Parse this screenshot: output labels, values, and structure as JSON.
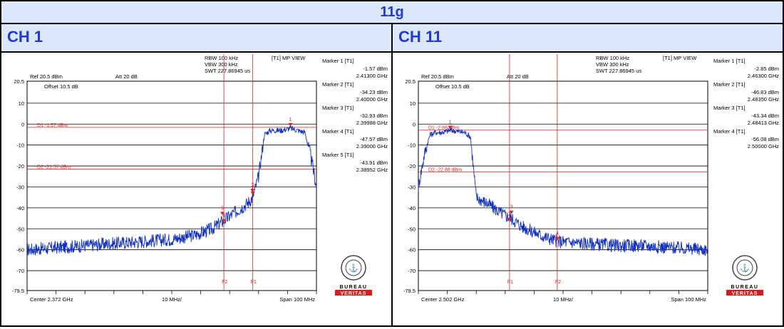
{
  "title": "11g",
  "panels": [
    {
      "label": "CH 1",
      "rbw": "RBW 100 kHz",
      "vbw": "VBW 300 kHz",
      "swt": "SWT 227.86945 us",
      "mode": "[T1] MP VIEW",
      "ref": "Ref 20.5 dBm",
      "att": "Att  20 dB",
      "offset": "Offset 10.5 dB",
      "center": "Center 2.372 GHz",
      "div": "10 MHz/",
      "span": "Span 100 MHz",
      "markers": [
        {
          "name": "Marker 1 [T1]",
          "level": "-1.57 dBm",
          "freq": "2.41300 GHz"
        },
        {
          "name": "Marker 2 [T1]",
          "level": "-34.23 dBm",
          "freq": "2.40000 GHz"
        },
        {
          "name": "Marker 3 [T1]",
          "level": "-32.93 dBm",
          "freq": "2.39988 GHz"
        },
        {
          "name": "Marker 4 [T1]",
          "level": "-47.57 dBm",
          "freq": "2.39000 GHz"
        },
        {
          "name": "Marker 5 [T1]",
          "level": "-43.91 dBm",
          "freq": "2.38952 GHz"
        }
      ],
      "d1_label": "D1 -1.57 dBm",
      "d2_label": "D2 -21.57 dBm",
      "f1_label": "F1",
      "f2_label": "F2"
    },
    {
      "label": "CH 11",
      "rbw": "RBW 100 kHz",
      "vbw": "VBW 300 kHz",
      "swt": "SWT 227.86945 us",
      "mode": "[T1] MP VIEW",
      "ref": "Ref 20.5 dBm",
      "att": "Att  20 dB",
      "offset": "Offset 10.5 dB",
      "center": "Center 2.502 GHz",
      "div": "10 MHz/",
      "span": "Span 100 MHz",
      "markers": [
        {
          "name": "Marker 1 [T1]",
          "level": "-2.85 dBm",
          "freq": "2.46300 GHz"
        },
        {
          "name": "Marker 2 [T1]",
          "level": "-46.83 dBm",
          "freq": "2.48350 GHz"
        },
        {
          "name": "Marker 3 [T1]",
          "level": "-43.34 dBm",
          "freq": "2.48413 GHz"
        },
        {
          "name": "Marker 4 [T1]",
          "level": "-56.08 dBm",
          "freq": "2.50000 GHz"
        }
      ],
      "d1_label": "D1 -2.88 dBm",
      "d2_label": "D2 -22.88 dBm",
      "f1_label": "F1",
      "f2_label": "F2"
    }
  ],
  "logo": {
    "line1": "BUREAU",
    "line2": "VERITAS",
    "seal_text": "BUREAU VERITAS 1828"
  },
  "colors": {
    "header_bg": "#dbe7fb",
    "header_text": "#2238d8",
    "trace": "#1030c8",
    "marker_red": "#e02020",
    "grid": "#000000"
  },
  "chart_data": [
    {
      "type": "line",
      "title": "CH 1",
      "xlabel": "",
      "ylabel": "",
      "xlim": [
        2.322,
        2.422
      ],
      "ylim": [
        -79.5,
        20.5
      ],
      "y_ticks": [
        20.5,
        10,
        0,
        -10,
        -20,
        -30,
        -40,
        -50,
        -60,
        -70,
        -79.5
      ],
      "display_line_D1": -1.57,
      "display_line_D2": -21.57,
      "freq_line_F1": 2.4,
      "freq_line_F2": 2.39,
      "series": [
        {
          "x": [
            2.322,
            2.332,
            2.342,
            2.352,
            2.362,
            2.372,
            2.38,
            2.386,
            2.39,
            2.394,
            2.398,
            2.4,
            2.402,
            2.404,
            2.406,
            2.41,
            2.413,
            2.418,
            2.42,
            2.422
          ],
          "y": [
            -60,
            -59,
            -58,
            -57,
            -56,
            -55,
            -53,
            -50,
            -46,
            -42,
            -38,
            -35,
            -25,
            -5,
            -3,
            -3,
            -2,
            -4,
            -15,
            -30
          ]
        }
      ],
      "markers": [
        {
          "id": 1,
          "x": 2.413,
          "y": -1.57
        },
        {
          "id": 2,
          "x": 2.4,
          "y": -34.23
        },
        {
          "id": 3,
          "x": 2.39988,
          "y": -32.93
        },
        {
          "id": 4,
          "x": 2.39,
          "y": -47.57
        },
        {
          "id": 5,
          "x": 2.38952,
          "y": -43.91
        }
      ]
    },
    {
      "type": "line",
      "title": "CH 11",
      "xlabel": "",
      "ylabel": "",
      "xlim": [
        2.452,
        2.552
      ],
      "ylim": [
        -79.5,
        20.5
      ],
      "y_ticks": [
        20.5,
        10,
        0,
        -10,
        -20,
        -30,
        -40,
        -50,
        -60,
        -70,
        -79.5
      ],
      "display_line_D1": -2.88,
      "display_line_D2": -22.88,
      "freq_line_F1": 2.4835,
      "freq_line_F2": 2.5,
      "series": [
        {
          "x": [
            2.452,
            2.454,
            2.456,
            2.458,
            2.46,
            2.463,
            2.468,
            2.47,
            2.472,
            2.476,
            2.48,
            2.484,
            2.488,
            2.494,
            2.5,
            2.51,
            2.52,
            2.53,
            2.54,
            2.552
          ],
          "y": [
            -30,
            -15,
            -5,
            -4,
            -4,
            -3,
            -4,
            -6,
            -35,
            -38,
            -42,
            -45,
            -49,
            -53,
            -56,
            -57,
            -58,
            -58,
            -59,
            -60
          ]
        }
      ],
      "markers": [
        {
          "id": 1,
          "x": 2.463,
          "y": -2.85
        },
        {
          "id": 2,
          "x": 2.4835,
          "y": -46.83
        },
        {
          "id": 3,
          "x": 2.48413,
          "y": -43.34
        },
        {
          "id": 4,
          "x": 2.5,
          "y": -56.08
        }
      ]
    }
  ]
}
